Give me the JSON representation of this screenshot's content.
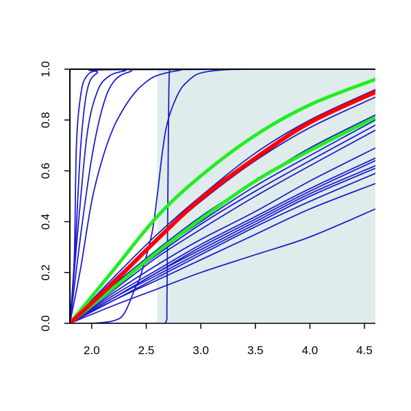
{
  "chart_data": {
    "type": "line",
    "title": "",
    "xlabel": "",
    "ylabel": "",
    "xlim": [
      1.8,
      4.6
    ],
    "ylim": [
      0.0,
      1.0
    ],
    "x_ticks": [
      {
        "value": 2.0,
        "label": "2.0"
      },
      {
        "value": 2.5,
        "label": "2.5"
      },
      {
        "value": 3.0,
        "label": "3.0"
      },
      {
        "value": 3.5,
        "label": "3.5"
      },
      {
        "value": 4.0,
        "label": "4.0"
      },
      {
        "value": 4.5,
        "label": "4.5"
      }
    ],
    "y_ticks": [
      {
        "value": 0.0,
        "label": "0.0"
      },
      {
        "value": 0.2,
        "label": "0.2"
      },
      {
        "value": 0.4,
        "label": "0.4"
      },
      {
        "value": 0.6,
        "label": "0.6"
      },
      {
        "value": 0.8,
        "label": "0.8"
      },
      {
        "value": 1.0,
        "label": "1.0"
      }
    ],
    "shaded_region": {
      "x_start": 2.6,
      "x_end": 4.6,
      "color": "#dfeceb"
    },
    "grid": false,
    "colors": {
      "blue": "#1c1ccc",
      "red": "#ff0000",
      "green": "#22ee22",
      "axis": "#000000"
    },
    "series": [
      {
        "id": "blue-01",
        "color": "blue",
        "width": 1.8,
        "points": [
          [
            1.8,
            0.0
          ],
          [
            1.84,
            0.25
          ],
          [
            1.86,
            0.7
          ],
          [
            1.9,
            0.9
          ],
          [
            1.95,
            0.97
          ],
          [
            2.05,
            0.995
          ],
          [
            2.3,
            1.0
          ],
          [
            4.6,
            1.0
          ]
        ]
      },
      {
        "id": "blue-02",
        "color": "blue",
        "width": 1.8,
        "points": [
          [
            1.8,
            0.0
          ],
          [
            1.85,
            0.3
          ],
          [
            1.9,
            0.7
          ],
          [
            1.96,
            0.92
          ],
          [
            2.05,
            0.985
          ],
          [
            2.2,
            0.998
          ],
          [
            4.6,
            1.0
          ]
        ]
      },
      {
        "id": "blue-03",
        "color": "blue",
        "width": 1.8,
        "points": [
          [
            1.8,
            0.0
          ],
          [
            1.88,
            0.4
          ],
          [
            1.96,
            0.75
          ],
          [
            2.05,
            0.91
          ],
          [
            2.15,
            0.97
          ],
          [
            2.3,
            0.993
          ],
          [
            2.5,
            1.0
          ],
          [
            4.6,
            1.0
          ]
        ]
      },
      {
        "id": "blue-04",
        "color": "blue",
        "width": 1.8,
        "points": [
          [
            1.8,
            0.0
          ],
          [
            1.9,
            0.35
          ],
          [
            2.0,
            0.65
          ],
          [
            2.1,
            0.85
          ],
          [
            2.2,
            0.95
          ],
          [
            2.35,
            0.99
          ],
          [
            2.6,
            1.0
          ],
          [
            4.6,
            1.0
          ]
        ]
      },
      {
        "id": "blue-05",
        "color": "blue",
        "width": 1.8,
        "points": [
          [
            1.8,
            0.0
          ],
          [
            1.9,
            0.22
          ],
          [
            2.0,
            0.48
          ],
          [
            2.1,
            0.65
          ],
          [
            2.2,
            0.77
          ],
          [
            2.3,
            0.85
          ],
          [
            2.4,
            0.91
          ],
          [
            2.5,
            0.95
          ],
          [
            2.6,
            0.975
          ],
          [
            2.8,
            0.995
          ],
          [
            3.0,
            1.0
          ],
          [
            4.6,
            1.0
          ]
        ]
      },
      {
        "id": "blue-06",
        "color": "blue",
        "width": 1.8,
        "points": [
          [
            1.8,
            0.0
          ],
          [
            2.0,
            0.0
          ],
          [
            2.2,
            0.01
          ],
          [
            2.3,
            0.04
          ],
          [
            2.4,
            0.14
          ],
          [
            2.45,
            0.19
          ],
          [
            2.55,
            0.35
          ],
          [
            2.6,
            0.5
          ],
          [
            2.65,
            0.68
          ],
          [
            2.7,
            0.8
          ],
          [
            2.8,
            0.91
          ],
          [
            2.9,
            0.96
          ],
          [
            3.0,
            0.985
          ],
          [
            3.2,
            0.997
          ],
          [
            3.5,
            1.0
          ],
          [
            4.6,
            1.0
          ]
        ]
      },
      {
        "id": "blue-07",
        "color": "blue",
        "width": 1.8,
        "points": [
          [
            1.8,
            0.0
          ],
          [
            2.4,
            0.0
          ],
          [
            2.6,
            0.0
          ],
          [
            2.68,
            0.005
          ],
          [
            2.69,
            0.1
          ],
          [
            2.7,
            0.6
          ],
          [
            2.71,
            0.97
          ],
          [
            2.73,
            0.998
          ],
          [
            2.8,
            1.0
          ],
          [
            4.6,
            1.0
          ]
        ]
      },
      {
        "id": "blue-08",
        "color": "blue",
        "width": 1.8,
        "points": [
          [
            1.8,
            0.0
          ],
          [
            2.2,
            0.17
          ],
          [
            2.6,
            0.33
          ],
          [
            3.0,
            0.48
          ],
          [
            3.5,
            0.64
          ],
          [
            4.0,
            0.77
          ],
          [
            4.6,
            0.89
          ]
        ]
      },
      {
        "id": "blue-09",
        "color": "blue",
        "width": 1.8,
        "points": [
          [
            1.8,
            0.0
          ],
          [
            2.2,
            0.18
          ],
          [
            2.6,
            0.35
          ],
          [
            3.0,
            0.5
          ],
          [
            3.5,
            0.67
          ],
          [
            4.0,
            0.8
          ],
          [
            4.6,
            0.92
          ]
        ]
      },
      {
        "id": "blue-10",
        "color": "blue",
        "width": 1.8,
        "points": [
          [
            1.8,
            0.0
          ],
          [
            2.2,
            0.14
          ],
          [
            2.6,
            0.27
          ],
          [
            3.0,
            0.39
          ],
          [
            3.5,
            0.52
          ],
          [
            4.0,
            0.64
          ],
          [
            4.6,
            0.78
          ]
        ]
      },
      {
        "id": "blue-11",
        "color": "blue",
        "width": 1.8,
        "points": [
          [
            1.8,
            0.0
          ],
          [
            2.2,
            0.14
          ],
          [
            2.6,
            0.28
          ],
          [
            3.0,
            0.4
          ],
          [
            3.5,
            0.54
          ],
          [
            4.0,
            0.66
          ],
          [
            4.6,
            0.8
          ]
        ]
      },
      {
        "id": "blue-12",
        "color": "blue",
        "width": 1.8,
        "points": [
          [
            1.8,
            0.0
          ],
          [
            2.2,
            0.15
          ],
          [
            2.6,
            0.29
          ],
          [
            3.0,
            0.42
          ],
          [
            3.5,
            0.56
          ],
          [
            4.0,
            0.69
          ],
          [
            4.6,
            0.82
          ]
        ]
      },
      {
        "id": "blue-13",
        "color": "blue",
        "width": 1.8,
        "points": [
          [
            1.8,
            0.0
          ],
          [
            2.2,
            0.13
          ],
          [
            2.6,
            0.26
          ],
          [
            3.0,
            0.37
          ],
          [
            3.5,
            0.5
          ],
          [
            4.0,
            0.62
          ],
          [
            4.6,
            0.76
          ]
        ]
      },
      {
        "id": "blue-14",
        "color": "blue",
        "width": 1.8,
        "points": [
          [
            1.8,
            0.0
          ],
          [
            2.2,
            0.12
          ],
          [
            2.6,
            0.23
          ],
          [
            3.0,
            0.33
          ],
          [
            3.5,
            0.44
          ],
          [
            4.0,
            0.56
          ],
          [
            4.6,
            0.69
          ]
        ]
      },
      {
        "id": "blue-15",
        "color": "blue",
        "width": 1.8,
        "points": [
          [
            1.8,
            0.0
          ],
          [
            2.2,
            0.11
          ],
          [
            2.6,
            0.21
          ],
          [
            3.0,
            0.31
          ],
          [
            3.5,
            0.42
          ],
          [
            4.0,
            0.53
          ],
          [
            4.6,
            0.65
          ]
        ]
      },
      {
        "id": "blue-16",
        "color": "blue",
        "width": 1.8,
        "points": [
          [
            1.8,
            0.0
          ],
          [
            2.2,
            0.1
          ],
          [
            2.6,
            0.2
          ],
          [
            3.0,
            0.3
          ],
          [
            3.5,
            0.41
          ],
          [
            4.0,
            0.52
          ],
          [
            4.6,
            0.64
          ]
        ]
      },
      {
        "id": "blue-17",
        "color": "blue",
        "width": 1.8,
        "points": [
          [
            1.8,
            0.0
          ],
          [
            2.2,
            0.1
          ],
          [
            2.6,
            0.2
          ],
          [
            3.0,
            0.29
          ],
          [
            3.5,
            0.4
          ],
          [
            4.0,
            0.51
          ],
          [
            4.6,
            0.62
          ]
        ]
      },
      {
        "id": "blue-18",
        "color": "blue",
        "width": 1.8,
        "points": [
          [
            1.8,
            0.0
          ],
          [
            2.2,
            0.1
          ],
          [
            2.6,
            0.19
          ],
          [
            3.0,
            0.28
          ],
          [
            3.5,
            0.39
          ],
          [
            4.0,
            0.5
          ],
          [
            4.6,
            0.61
          ]
        ]
      },
      {
        "id": "blue-19",
        "color": "blue",
        "width": 1.8,
        "points": [
          [
            1.8,
            0.0
          ],
          [
            2.2,
            0.09
          ],
          [
            2.6,
            0.18
          ],
          [
            3.0,
            0.27
          ],
          [
            3.5,
            0.38
          ],
          [
            4.0,
            0.48
          ],
          [
            4.6,
            0.59
          ]
        ]
      },
      {
        "id": "blue-20",
        "color": "blue",
        "width": 1.8,
        "points": [
          [
            1.8,
            0.0
          ],
          [
            2.2,
            0.09
          ],
          [
            2.6,
            0.17
          ],
          [
            3.0,
            0.25
          ],
          [
            3.5,
            0.35
          ],
          [
            4.0,
            0.45
          ],
          [
            4.6,
            0.55
          ]
        ]
      },
      {
        "id": "blue-21",
        "color": "blue",
        "width": 1.8,
        "points": [
          [
            1.8,
            0.0
          ],
          [
            2.2,
            0.07
          ],
          [
            2.6,
            0.135
          ],
          [
            3.0,
            0.2
          ],
          [
            3.5,
            0.27
          ],
          [
            4.0,
            0.34
          ],
          [
            4.6,
            0.45
          ]
        ]
      },
      {
        "id": "green-01",
        "color": "green",
        "width": 5,
        "points": [
          [
            1.8,
            0.0
          ],
          [
            2.2,
            0.21
          ],
          [
            2.6,
            0.42
          ],
          [
            3.0,
            0.58
          ],
          [
            3.5,
            0.74
          ],
          [
            4.0,
            0.86
          ],
          [
            4.6,
            0.96
          ]
        ]
      },
      {
        "id": "green-02",
        "color": "green",
        "width": 5,
        "points": [
          [
            1.8,
            0.0
          ],
          [
            2.2,
            0.14
          ],
          [
            2.6,
            0.28
          ],
          [
            3.0,
            0.41
          ],
          [
            3.5,
            0.56
          ],
          [
            4.0,
            0.68
          ],
          [
            4.6,
            0.81
          ]
        ]
      },
      {
        "id": "red-01",
        "color": "red",
        "width": 6,
        "points": [
          [
            1.8,
            0.0
          ],
          [
            2.2,
            0.16
          ],
          [
            2.6,
            0.33
          ],
          [
            3.0,
            0.49
          ],
          [
            3.5,
            0.65
          ],
          [
            4.0,
            0.79
          ],
          [
            4.6,
            0.91
          ]
        ]
      }
    ]
  }
}
